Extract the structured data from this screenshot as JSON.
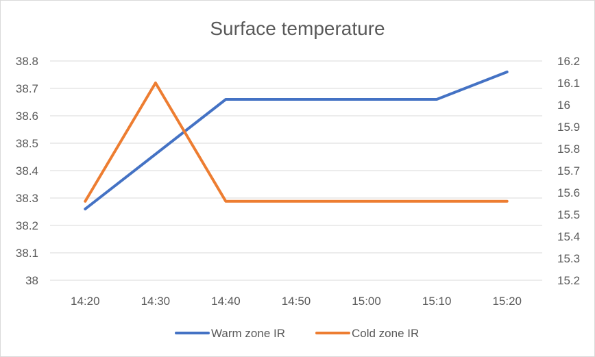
{
  "chart_data": {
    "type": "line",
    "title": "Surface temperature",
    "categories": [
      "14:20",
      "14:30",
      "14:40",
      "14:50",
      "15:00",
      "15:10",
      "15:20"
    ],
    "series": [
      {
        "name": "Warm zone IR",
        "axis": "left",
        "color": "#4472C4",
        "values": [
          38.26,
          null,
          38.66,
          null,
          null,
          38.66,
          38.76
        ]
      },
      {
        "name": "Cold zone IR",
        "axis": "right",
        "color": "#ED7D31",
        "values": [
          15.56,
          16.1,
          15.56,
          null,
          null,
          null,
          15.56
        ]
      }
    ],
    "y_left": {
      "min": 38,
      "max": 38.8,
      "ticks": [
        "38",
        "38.1",
        "38.2",
        "38.3",
        "38.4",
        "38.5",
        "38.6",
        "38.7",
        "38.8"
      ]
    },
    "y_right": {
      "min": 15.2,
      "max": 16.2,
      "ticks": [
        "15.2",
        "15.3",
        "15.4",
        "15.5",
        "15.6",
        "15.7",
        "15.8",
        "15.9",
        "16",
        "16.1",
        "16.2"
      ]
    },
    "grid": true,
    "legend_position": "bottom"
  }
}
